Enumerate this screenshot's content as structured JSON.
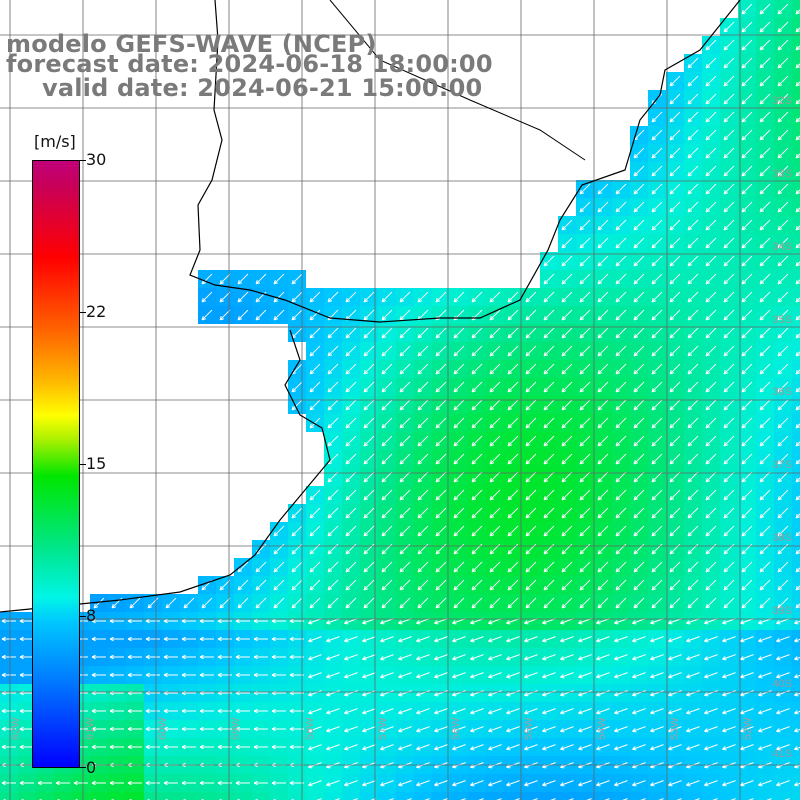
{
  "title": {
    "line1": "modelo GEFS-WAVE (NCEP)",
    "line2": "forecast date: 2024-06-18 18:00:00",
    "line3": "valid date: 2024-06-21 15:00:00"
  },
  "colorbar": {
    "unit": "[m/s]",
    "ticks": [
      "30",
      "22",
      "15",
      "8",
      "0"
    ],
    "min": 0,
    "max": 30,
    "colors": [
      "#0000ff",
      "#00c8ff",
      "#00e600",
      "#ffff00",
      "#ff6400",
      "#ff0000",
      "#c0007a"
    ]
  },
  "map_labels": {
    "lat": [
      "32S",
      "33S",
      "34S",
      "35S",
      "36S",
      "37S",
      "38S",
      "39S",
      "40S",
      "41S"
    ],
    "lon": [
      "62W",
      "61W",
      "60W",
      "59W",
      "58W",
      "57W",
      "56W",
      "55W",
      "54W",
      "53W",
      "52W"
    ]
  },
  "colors": {
    "land": "#ffffff",
    "grid": "#555555",
    "arrows": "#ffffff",
    "title": "#7a7a7a"
  },
  "wind_field": {
    "direction": "from north-east, toward south-west",
    "speed_range_ms": [
      6,
      14
    ]
  }
}
